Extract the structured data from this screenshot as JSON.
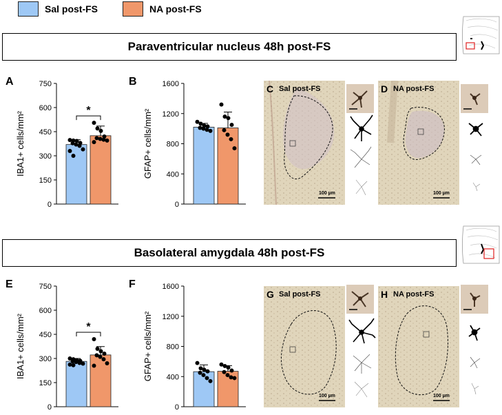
{
  "legend": [
    {
      "label": "Sal post-FS",
      "color": "#9ec8f5"
    },
    {
      "label": "NA post-FS",
      "color": "#f0976a"
    }
  ],
  "sections": {
    "pvn_title": "Paraventricular nucleus 48h post-FS",
    "bla_title": "Basolateral amygdala 48h post-FS"
  },
  "panels": {
    "A": {
      "letter": "A",
      "ylabel": "IBA1+ cells/mm²",
      "sig": "*"
    },
    "B": {
      "letter": "B",
      "ylabel": "GFAP+ cells/mm²"
    },
    "C": {
      "letter": "C",
      "label": "Sal post-FS",
      "scale": "100 µm"
    },
    "D": {
      "letter": "D",
      "label": "NA post-FS",
      "scale": "100 µm"
    },
    "E": {
      "letter": "E",
      "ylabel": "IBA1+ cells/mm²",
      "sig": "*"
    },
    "F": {
      "letter": "F",
      "ylabel": "GFAP+ cells/mm²"
    },
    "G": {
      "letter": "G",
      "label": "Sal post-FS",
      "scale": "100 µm"
    },
    "H": {
      "letter": "H",
      "label": "NA post-FS",
      "scale": "100 µm"
    }
  },
  "chart_data": [
    {
      "panel": "A",
      "type": "bar",
      "categories": [
        "Sal post-FS",
        "NA post-FS"
      ],
      "values": [
        370,
        425
      ],
      "errors": [
        30,
        60
      ],
      "points": [
        [
          398,
          395,
          392,
          380,
          378,
          370,
          362,
          340,
          330,
          300
        ],
        [
          505,
          470,
          455,
          420,
          410,
          405,
          400,
          395,
          385
        ]
      ],
      "ylabel": "IBA1+ cells/mm²",
      "ylim": [
        0,
        750
      ],
      "yticks": [
        0,
        150,
        300,
        450,
        600,
        750
      ],
      "significance": "*"
    },
    {
      "panel": "B",
      "type": "bar",
      "categories": [
        "Sal post-FS",
        "NA post-FS"
      ],
      "values": [
        1020,
        1010
      ],
      "errors": [
        50,
        210
      ],
      "points": [
        [
          1090,
          1065,
          1040,
          1030,
          1010,
          1000,
          985,
          970
        ],
        [
          1320,
          1160,
          1140,
          1050,
          980,
          920,
          860,
          740
        ]
      ],
      "ylabel": "GFAP+ cells/mm²",
      "ylim": [
        0,
        1600
      ],
      "yticks": [
        0,
        400,
        800,
        1200,
        1600
      ]
    },
    {
      "panel": "E",
      "type": "bar",
      "categories": [
        "Sal post-FS",
        "NA post-FS"
      ],
      "values": [
        282,
        322
      ],
      "errors": [
        18,
        52
      ],
      "points": [
        [
          300,
          295,
          290,
          285,
          282,
          278,
          272,
          268,
          262,
          258
        ],
        [
          420,
          360,
          345,
          330,
          320,
          310,
          295,
          270,
          255
        ]
      ],
      "ylabel": "IBA1+ cells/mm²",
      "ylim": [
        0,
        750
      ],
      "yticks": [
        0,
        150,
        300,
        450,
        600,
        750
      ],
      "significance": "*"
    },
    {
      "panel": "F",
      "type": "bar",
      "categories": [
        "Sal post-FS",
        "NA post-FS"
      ],
      "values": [
        465,
        470
      ],
      "errors": [
        90,
        75
      ],
      "points": [
        [
          580,
          510,
          490,
          470,
          450,
          420,
          380,
          340
        ],
        [
          560,
          540,
          520,
          480,
          460,
          420,
          390,
          380
        ]
      ],
      "ylabel": "GFAP+ cells/mm²",
      "ylim": [
        0,
        1600
      ],
      "yticks": [
        0,
        400,
        800,
        1200,
        1600
      ]
    }
  ]
}
